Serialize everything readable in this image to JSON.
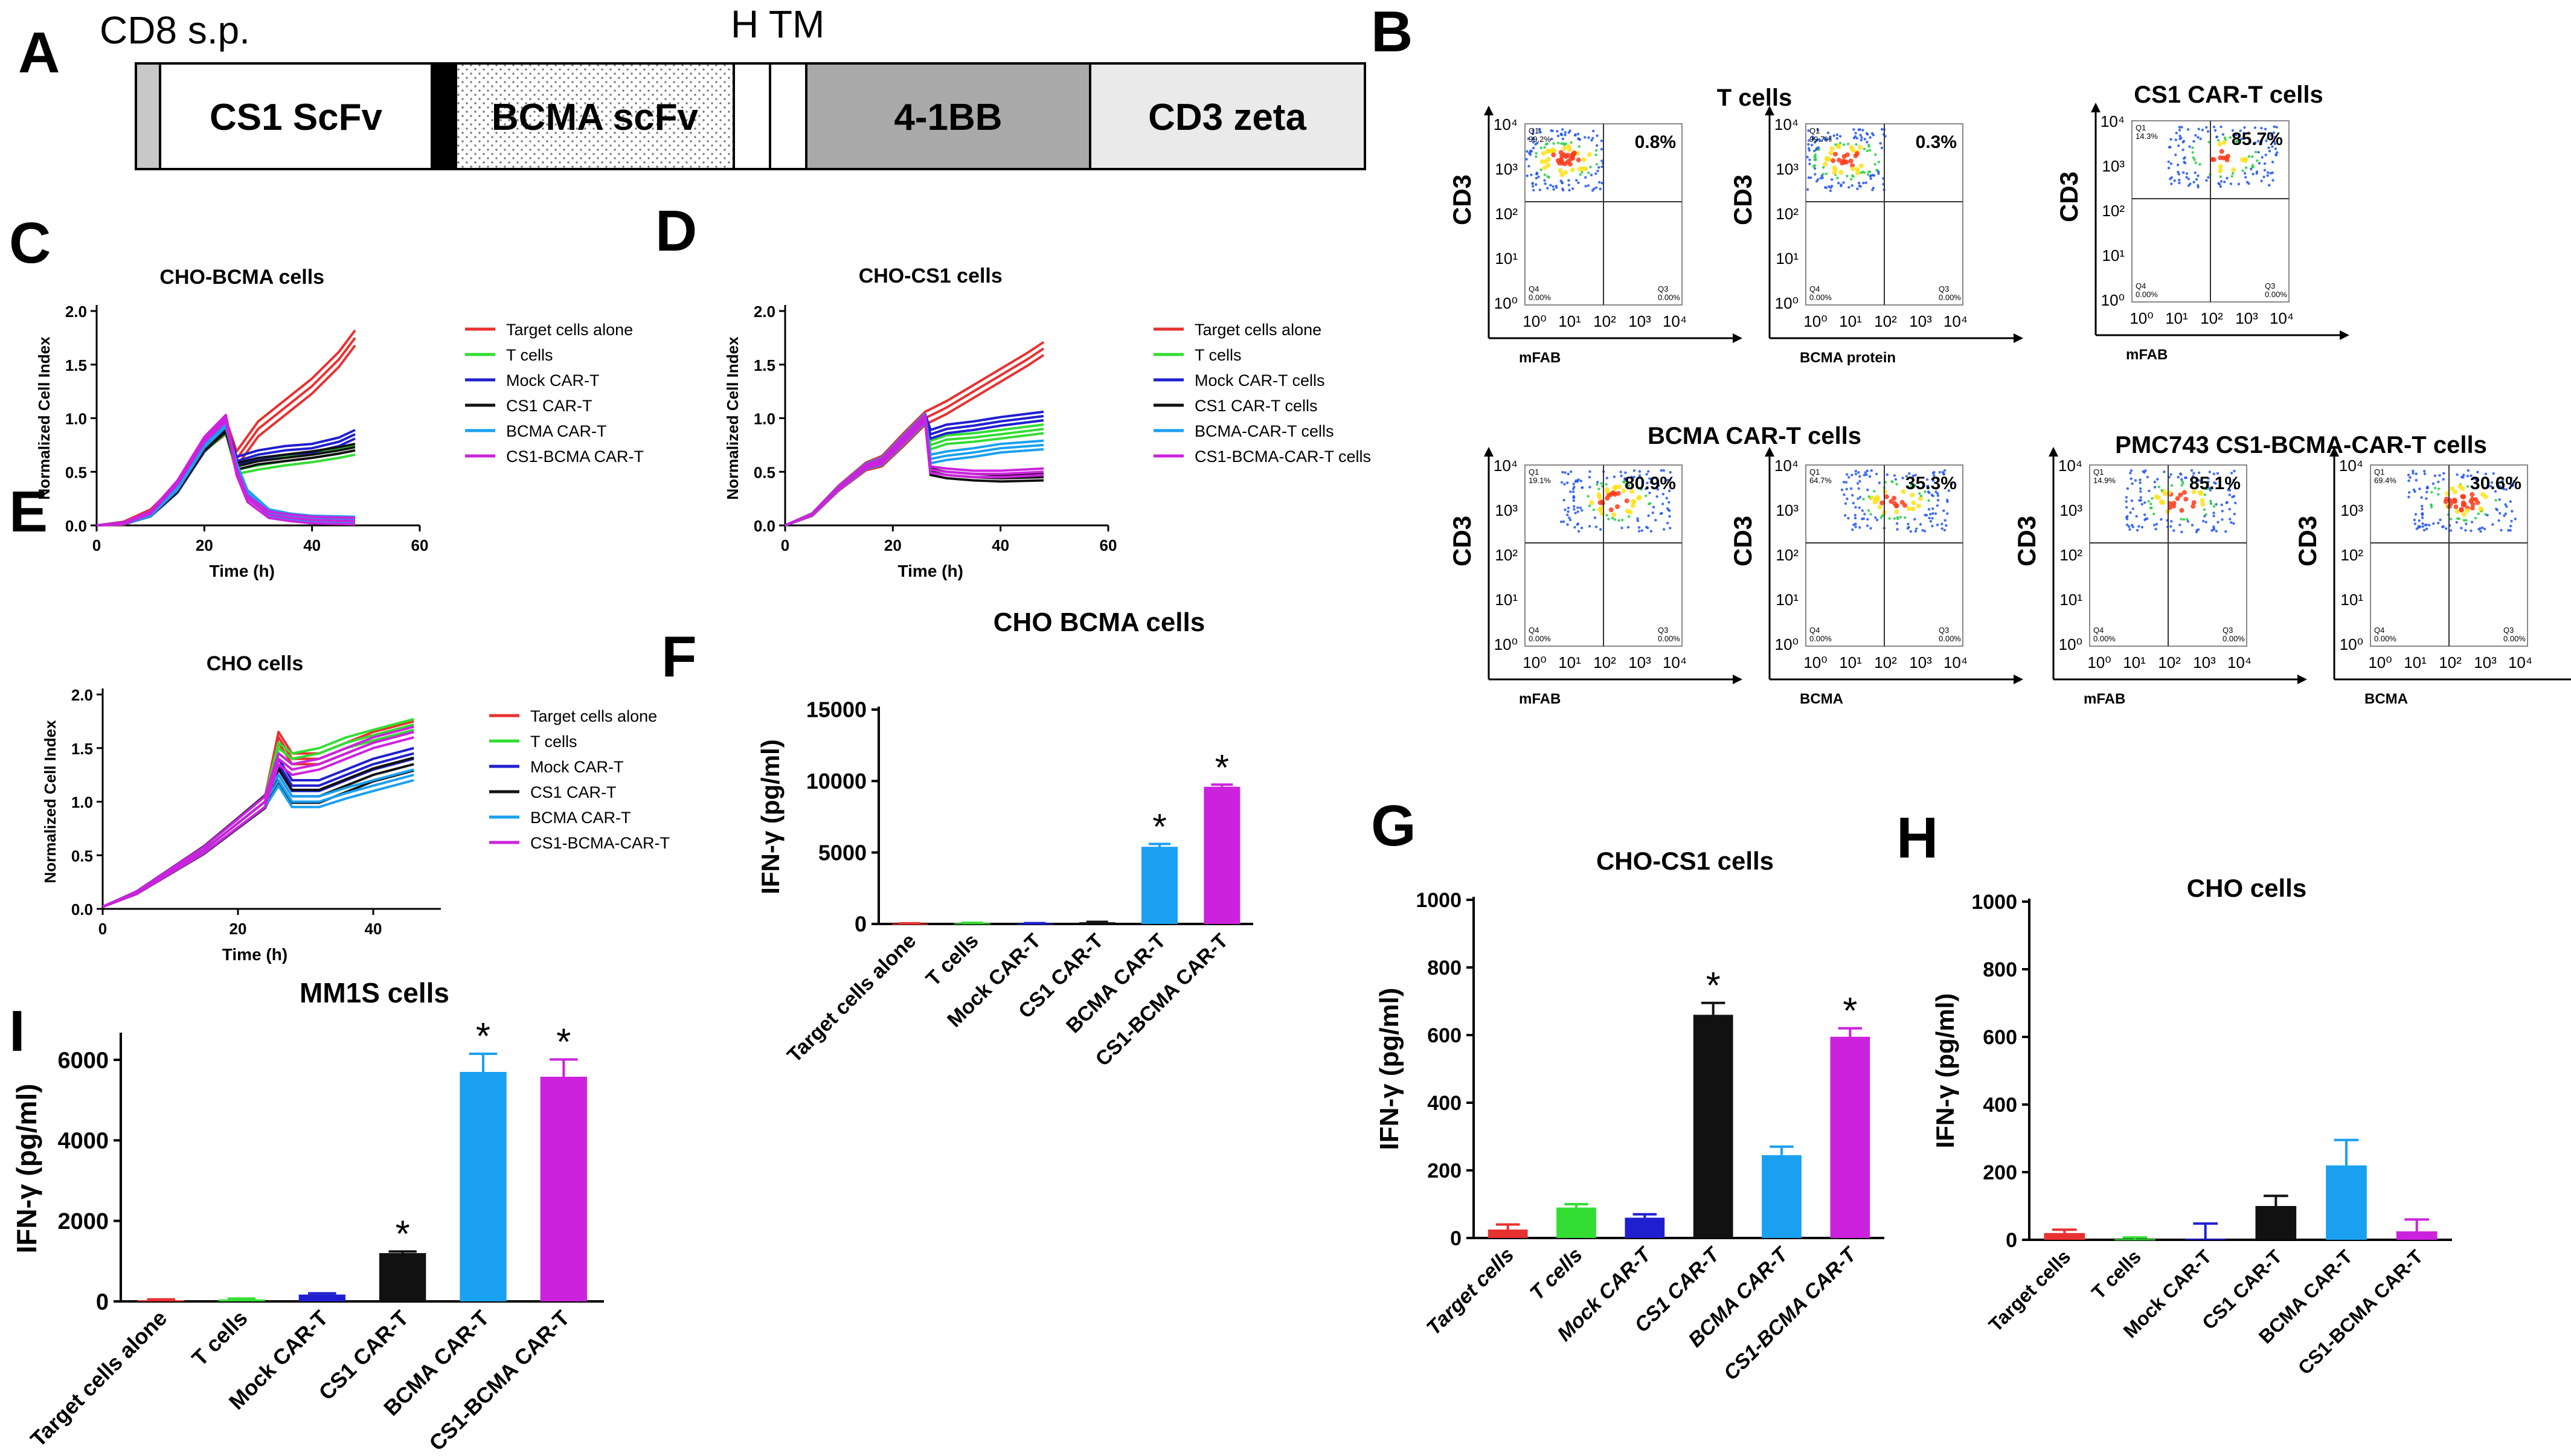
{
  "colors": {
    "red": "#e83131",
    "green": "#33dd33",
    "blue": "#1f1fd0",
    "black": "#111111",
    "cyan": "#1aa0f0",
    "magenta": "#cc22dd",
    "construct_gray": "#c8c8c8",
    "construct_dark": "#a9a9a9"
  },
  "panel_letters": [
    "A",
    "B",
    "C",
    "D",
    "E",
    "F",
    "G",
    "H",
    "I"
  ],
  "construct": {
    "top_labels": [
      "CD8 s.p.",
      "H TM"
    ],
    "segments": [
      "CS1 ScFv",
      "BCMA scFv",
      "4-1BB",
      "CD3 zeta"
    ]
  },
  "flow": {
    "tick_labels_y": [
      "10⁴",
      "10³",
      "10²",
      "10¹",
      "10⁰"
    ],
    "tick_labels_x": [
      "10⁰",
      "10¹",
      "10²",
      "10³",
      "10⁴"
    ],
    "y_label": "CD3",
    "quadrant_labels": [
      "Q1",
      "Q3",
      "Q4"
    ],
    "groups": [
      "T cells",
      "CS1 CAR-T cells",
      "BCMA CAR-T cells",
      "PMC743 CS1-BCMA-CAR-T cells"
    ],
    "plots": [
      {
        "xlabel": "mFAB",
        "percent": "0.8%",
        "q1": "99.2%",
        "q4": "0.00%",
        "q3": "0.00%"
      },
      {
        "xlabel": "BCMA protein",
        "percent": "0.3%",
        "q1": "99.7%",
        "q4": "0.00%",
        "q3": "0.00%"
      },
      {
        "xlabel": "mFAB",
        "percent": "85.7%",
        "q1": "14.3%",
        "q4": "0.00%",
        "q3": "0.00%"
      },
      {
        "xlabel": "mFAB",
        "percent": "80.9%",
        "q1": "19.1%",
        "q4": "0.00%",
        "q3": "0.00%"
      },
      {
        "xlabel": "BCMA",
        "percent": "35.3%",
        "q1": "64.7%",
        "q4": "0.00%",
        "q3": "0.00%"
      },
      {
        "xlabel": "mFAB",
        "percent": "85.1%",
        "q1": "14.9%",
        "q4": "0.00%",
        "q3": "0.00%"
      },
      {
        "xlabel": "BCMA",
        "percent": "30.6%",
        "q1": "69.4%",
        "q4": "0.00%",
        "q3": "0.00%"
      }
    ]
  },
  "chart_data": [
    {
      "id": "C",
      "type": "line",
      "title": "CHO-BCMA cells",
      "xlabel": "Time (h)",
      "ylabel": "Normalized Cell Index",
      "xlim": [
        0,
        60
      ],
      "ylim": [
        0,
        2.0
      ],
      "xticks": [
        0,
        20,
        40,
        60
      ],
      "yticks": [
        0,
        0.5,
        1.0,
        1.5,
        2.0
      ],
      "ytick_labels": [
        "0.0",
        "0.5",
        "1.0",
        "1.5",
        "2.0"
      ],
      "series": [
        {
          "name": "Target cells alone",
          "color": "red",
          "x": [
            0,
            5,
            10,
            15,
            20,
            24,
            26,
            30,
            35,
            40,
            45,
            48
          ],
          "y": [
            0,
            0.02,
            0.12,
            0.35,
            0.75,
            0.92,
            0.62,
            0.9,
            1.1,
            1.3,
            1.55,
            1.75
          ],
          "band": 0.07
        },
        {
          "name": "T cells",
          "color": "green",
          "x": [
            0,
            5,
            10,
            15,
            20,
            24,
            26,
            30,
            35,
            40,
            45,
            48
          ],
          "y": [
            0,
            0.02,
            0.1,
            0.33,
            0.72,
            0.9,
            0.52,
            0.56,
            0.6,
            0.63,
            0.67,
            0.7
          ],
          "band": 0.04
        },
        {
          "name": "Mock CAR-T",
          "color": "blue",
          "x": [
            0,
            5,
            10,
            15,
            20,
            24,
            26,
            30,
            35,
            40,
            45,
            48
          ],
          "y": [
            0,
            0.02,
            0.1,
            0.33,
            0.72,
            0.92,
            0.6,
            0.66,
            0.7,
            0.72,
            0.78,
            0.85
          ],
          "band": 0.04
        },
        {
          "name": "CS1 CAR-T",
          "color": "black",
          "x": [
            0,
            5,
            10,
            15,
            20,
            24,
            26,
            30,
            35,
            40,
            45,
            48
          ],
          "y": [
            0,
            0.02,
            0.1,
            0.33,
            0.72,
            0.9,
            0.55,
            0.6,
            0.63,
            0.66,
            0.7,
            0.73
          ],
          "band": 0.03
        },
        {
          "name": "BCMA CAR-T",
          "color": "cyan",
          "x": [
            0,
            5,
            10,
            15,
            20,
            24,
            26,
            28,
            32,
            36,
            40,
            48
          ],
          "y": [
            0,
            0.02,
            0.1,
            0.35,
            0.75,
            0.95,
            0.55,
            0.3,
            0.12,
            0.08,
            0.06,
            0.05
          ],
          "band": 0.03
        },
        {
          "name": "CS1-BCMA CAR-T",
          "color": "magenta",
          "x": [
            0,
            5,
            10,
            15,
            20,
            24,
            26,
            28,
            32,
            36,
            40,
            48
          ],
          "y": [
            0,
            0.02,
            0.12,
            0.4,
            0.8,
            1.0,
            0.5,
            0.25,
            0.1,
            0.07,
            0.05,
            0.04
          ],
          "band": 0.03
        }
      ]
    },
    {
      "id": "D",
      "type": "line",
      "title": "CHO-CS1 cells",
      "xlabel": "Time (h)",
      "ylabel": "Normalized Cell Index",
      "xlim": [
        0,
        60
      ],
      "ylim": [
        0,
        2.0
      ],
      "xticks": [
        0,
        20,
        40,
        60
      ],
      "yticks": [
        0,
        0.5,
        1.0,
        1.5,
        2.0
      ],
      "ytick_labels": [
        "0.0",
        "0.5",
        "1.0",
        "1.5",
        "2.0"
      ],
      "series": [
        {
          "name": "Target cells alone",
          "color": "red",
          "x": [
            0,
            5,
            10,
            15,
            18,
            22,
            26,
            30,
            35,
            40,
            45,
            48
          ],
          "y": [
            0,
            0.1,
            0.35,
            0.55,
            0.6,
            0.8,
            1.0,
            1.1,
            1.25,
            1.4,
            1.55,
            1.65
          ],
          "band": 0.06
        },
        {
          "name": "T cells",
          "color": "green",
          "x": [
            0,
            5,
            10,
            15,
            18,
            22,
            26,
            27,
            30,
            35,
            40,
            48
          ],
          "y": [
            0,
            0.1,
            0.35,
            0.55,
            0.6,
            0.8,
            1.0,
            0.75,
            0.8,
            0.82,
            0.85,
            0.9
          ],
          "band": 0.04
        },
        {
          "name": "Mock CAR-T cells",
          "color": "blue",
          "x": [
            0,
            5,
            10,
            15,
            18,
            22,
            26,
            27,
            30,
            35,
            40,
            48
          ],
          "y": [
            0,
            0.1,
            0.35,
            0.55,
            0.6,
            0.8,
            1.0,
            0.85,
            0.9,
            0.93,
            0.97,
            1.02
          ],
          "band": 0.04
        },
        {
          "name": "CS1 CAR-T cells",
          "color": "black",
          "x": [
            0,
            5,
            10,
            15,
            18,
            22,
            26,
            27,
            30,
            35,
            40,
            48
          ],
          "y": [
            0,
            0.1,
            0.35,
            0.55,
            0.6,
            0.8,
            1.0,
            0.5,
            0.47,
            0.45,
            0.44,
            0.45
          ],
          "band": 0.03
        },
        {
          "name": "BCMA-CAR-T cells",
          "color": "cyan",
          "x": [
            0,
            5,
            10,
            15,
            18,
            22,
            26,
            27,
            30,
            35,
            40,
            48
          ],
          "y": [
            0,
            0.1,
            0.35,
            0.55,
            0.6,
            0.8,
            1.0,
            0.62,
            0.65,
            0.68,
            0.72,
            0.75
          ],
          "band": 0.04
        },
        {
          "name": "CS1-BCMA-CAR-T cells",
          "color": "magenta",
          "x": [
            0,
            5,
            10,
            15,
            18,
            22,
            26,
            27,
            30,
            35,
            40,
            48
          ],
          "y": [
            0,
            0.1,
            0.35,
            0.55,
            0.6,
            0.8,
            1.0,
            0.52,
            0.5,
            0.48,
            0.48,
            0.5
          ],
          "band": 0.03
        }
      ]
    },
    {
      "id": "E",
      "type": "line",
      "title": "CHO cells",
      "xlabel": "Time (h)",
      "ylabel": "Normalized Cell Index",
      "xlim": [
        0,
        50
      ],
      "ylim": [
        0,
        2.0
      ],
      "xticks": [
        0,
        20,
        40
      ],
      "yticks": [
        0,
        0.5,
        1.0,
        1.5,
        2.0
      ],
      "ytick_labels": [
        "0.0",
        "0.5",
        "1.0",
        "1.5",
        "2.0"
      ],
      "series": [
        {
          "name": "Target cells alone",
          "color": "red",
          "x": [
            0,
            5,
            10,
            15,
            20,
            24,
            26,
            28,
            32,
            36,
            40,
            46
          ],
          "y": [
            0.02,
            0.15,
            0.35,
            0.55,
            0.8,
            1.0,
            1.6,
            1.4,
            1.4,
            1.5,
            1.6,
            1.7
          ],
          "band": 0.05
        },
        {
          "name": "T cells",
          "color": "green",
          "x": [
            0,
            5,
            10,
            15,
            20,
            24,
            26,
            28,
            32,
            36,
            40,
            46
          ],
          "y": [
            0.02,
            0.15,
            0.35,
            0.55,
            0.8,
            1.0,
            1.5,
            1.4,
            1.45,
            1.55,
            1.62,
            1.72
          ],
          "band": 0.05
        },
        {
          "name": "Mock CAR-T",
          "color": "blue",
          "x": [
            0,
            5,
            10,
            15,
            20,
            24,
            26,
            28,
            32,
            36,
            40,
            46
          ],
          "y": [
            0.02,
            0.15,
            0.35,
            0.55,
            0.8,
            1.0,
            1.35,
            1.15,
            1.15,
            1.25,
            1.35,
            1.45
          ],
          "band": 0.05
        },
        {
          "name": "CS1 CAR-T",
          "color": "black",
          "x": [
            0,
            5,
            10,
            15,
            20,
            24,
            26,
            28,
            32,
            36,
            40,
            46
          ],
          "y": [
            0.02,
            0.15,
            0.35,
            0.55,
            0.8,
            1.0,
            1.25,
            1.05,
            1.05,
            1.15,
            1.25,
            1.35
          ],
          "band": 0.06
        },
        {
          "name": "BCMA CAR-T",
          "color": "cyan",
          "x": [
            0,
            5,
            10,
            15,
            20,
            24,
            26,
            28,
            32,
            36,
            40,
            46
          ],
          "y": [
            0.02,
            0.15,
            0.35,
            0.55,
            0.8,
            1.0,
            1.2,
            1.0,
            1.0,
            1.08,
            1.15,
            1.25
          ],
          "band": 0.05
        },
        {
          "name": "CS1-BCMA-CAR-T",
          "color": "magenta",
          "x": [
            0,
            5,
            10,
            15,
            20,
            24,
            26,
            28,
            32,
            36,
            40,
            46
          ],
          "y": [
            0.02,
            0.15,
            0.35,
            0.55,
            0.8,
            1.0,
            1.4,
            1.3,
            1.35,
            1.45,
            1.55,
            1.65
          ],
          "band": 0.05
        }
      ]
    },
    {
      "id": "F",
      "type": "bar",
      "title": "CHO BCMA cells",
      "ylabel": "IFN-γ (pg/ml)",
      "ylim": [
        0,
        15000
      ],
      "yticks": [
        0,
        5000,
        10000,
        15000
      ],
      "categories": [
        "Target cells alone",
        "T cells",
        "Mock CAR-T",
        "CS1 CAR-T",
        "BCMA CAR-T",
        "CS1-BCMA CAR-T"
      ],
      "values": [
        30,
        60,
        40,
        120,
        5400,
        9600
      ],
      "errors": [
        20,
        20,
        20,
        30,
        200,
        150
      ],
      "colors": [
        "red",
        "green",
        "blue",
        "black",
        "cyan",
        "magenta"
      ],
      "stars": [
        "",
        "",
        "",
        "",
        "*",
        "*"
      ],
      "italic": false
    },
    {
      "id": "G",
      "type": "bar",
      "title": "CHO-CS1 cells",
      "ylabel": "IFN-γ (pg/ml)",
      "ylim": [
        0,
        1000
      ],
      "yticks": [
        0,
        200,
        400,
        600,
        800,
        1000
      ],
      "categories": [
        "Target cells",
        "T cells",
        "Mock CAR-T",
        "CS1 CAR-T",
        "BCMA CAR-T",
        "CS1-BCMA CAR-T"
      ],
      "values": [
        25,
        90,
        60,
        660,
        245,
        595
      ],
      "errors": [
        15,
        10,
        10,
        35,
        25,
        25
      ],
      "colors": [
        "red",
        "green",
        "blue",
        "black",
        "cyan",
        "magenta"
      ],
      "stars": [
        "",
        "",
        "",
        "*",
        "",
        "*"
      ],
      "italic": true
    },
    {
      "id": "H",
      "type": "bar",
      "title": "CHO cells",
      "ylabel": "IFN-γ (pg/ml)",
      "ylim": [
        0,
        1000
      ],
      "yticks": [
        0,
        200,
        400,
        600,
        800,
        1000
      ],
      "categories": [
        "Target cells",
        "T cells",
        "Mock CAR-T",
        "CS1 CAR-T",
        "BCMA CAR-T",
        "CS1-BCMA CAR-T"
      ],
      "values": [
        20,
        2,
        3,
        100,
        220,
        25
      ],
      "errors": [
        10,
        5,
        45,
        30,
        75,
        35
      ],
      "colors": [
        "red",
        "green",
        "blue",
        "black",
        "cyan",
        "magenta"
      ],
      "stars": [
        "",
        "",
        "",
        "",
        "",
        ""
      ],
      "italic": false
    },
    {
      "id": "I",
      "type": "bar",
      "title": "MM1S cells",
      "ylabel": "IFN-γ (pg/ml)",
      "ylim": [
        0,
        6600
      ],
      "yticks": [
        0,
        2000,
        4000,
        6000
      ],
      "categories": [
        "Target cells alone",
        "T cells",
        "Mock CAR-T",
        "CS1 CAR-T",
        "BCMA CAR-T",
        "CS1-BCMA CAR-T"
      ],
      "values": [
        30,
        50,
        170,
        1200,
        5700,
        5580
      ],
      "errors": [
        20,
        20,
        30,
        40,
        450,
        430
      ],
      "colors": [
        "red",
        "green",
        "blue",
        "black",
        "cyan",
        "magenta"
      ],
      "stars": [
        "",
        "",
        "",
        "*",
        "*",
        "*"
      ],
      "italic": false
    }
  ]
}
